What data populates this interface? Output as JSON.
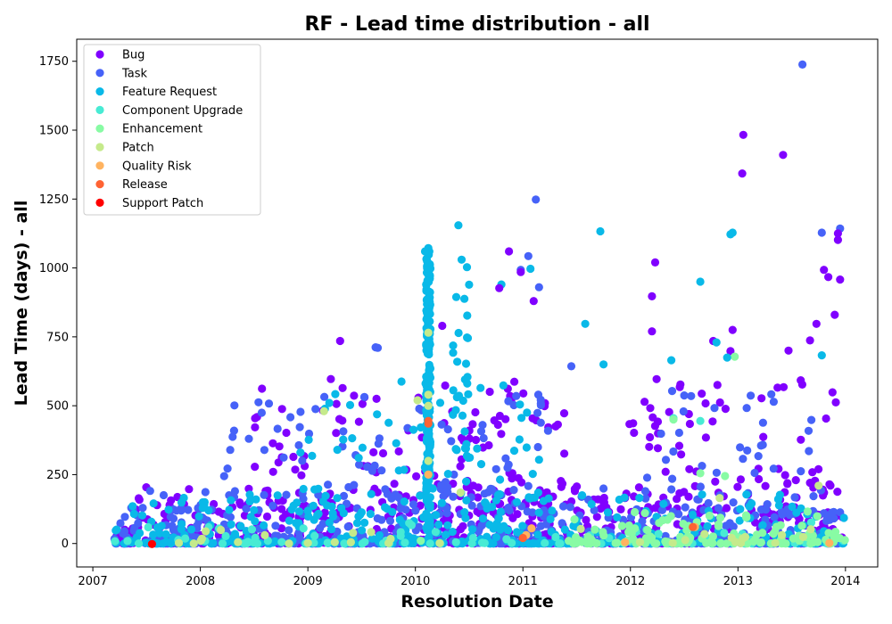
{
  "chart_data": {
    "type": "scatter",
    "title": "RF - Lead time distribution - all",
    "xlabel": "Resolution Date",
    "ylabel": "Lead Time (days) - all",
    "xlim": [
      2006.85,
      2014.3
    ],
    "ylim": [
      -85,
      1830
    ],
    "xticks": [
      2007,
      2008,
      2009,
      2010,
      2011,
      2012,
      2013,
      2014
    ],
    "yticks": [
      0,
      250,
      500,
      750,
      1000,
      1250,
      1500,
      1750
    ],
    "legend_position": "upper-left",
    "grid": false,
    "series": [
      {
        "name": "Bug",
        "color": "#8000ff"
      },
      {
        "name": "Task",
        "color": "#4662f8"
      },
      {
        "name": "Feature Request",
        "color": "#09b9e8"
      },
      {
        "name": "Component  Upgrade",
        "color": "#48ebd4"
      },
      {
        "name": "Enhancement",
        "color": "#88fba4"
      },
      {
        "name": "Patch",
        "color": "#c5ea8b"
      },
      {
        "name": "Quality Risk",
        "color": "#ffb360"
      },
      {
        "name": "Release",
        "color": "#ff6333"
      },
      {
        "name": "Support Patch",
        "color": "#ff0000"
      }
    ],
    "outliers": [
      {
        "series": "Task",
        "x": 2013.6,
        "y": 1738
      },
      {
        "series": "Bug",
        "x": 2013.05,
        "y": 1483
      },
      {
        "series": "Bug",
        "x": 2013.42,
        "y": 1410
      },
      {
        "series": "Bug",
        "x": 2013.04,
        "y": 1343
      },
      {
        "series": "Task",
        "x": 2011.12,
        "y": 1248
      },
      {
        "series": "Feature Request",
        "x": 2010.4,
        "y": 1155
      },
      {
        "series": "Task",
        "x": 2013.95,
        "y": 1143
      },
      {
        "series": "Feature Request",
        "x": 2011.72,
        "y": 1133
      },
      {
        "series": "Task",
        "x": 2013.78,
        "y": 1128
      },
      {
        "series": "Feature Request",
        "x": 2012.95,
        "y": 1128
      },
      {
        "series": "Bug",
        "x": 2013.93,
        "y": 1125
      },
      {
        "series": "Feature Request",
        "x": 2012.93,
        "y": 1122
      },
      {
        "series": "Bug",
        "x": 2013.93,
        "y": 1102
      },
      {
        "series": "Feature Request",
        "x": 2010.12,
        "y": 1072
      },
      {
        "series": "Feature Request",
        "x": 2010.09,
        "y": 1060
      },
      {
        "series": "Bug",
        "x": 2010.87,
        "y": 1060
      },
      {
        "series": "Task",
        "x": 2011.05,
        "y": 1043
      },
      {
        "series": "Feature Request",
        "x": 2010.43,
        "y": 1030
      },
      {
        "series": "Bug",
        "x": 2012.23,
        "y": 1020
      },
      {
        "series": "Feature Request",
        "x": 2010.48,
        "y": 1003
      },
      {
        "series": "Feature Request",
        "x": 2011.07,
        "y": 997
      },
      {
        "series": "Task",
        "x": 2010.98,
        "y": 993
      },
      {
        "series": "Bug",
        "x": 2013.8,
        "y": 993
      },
      {
        "series": "Bug",
        "x": 2010.98,
        "y": 985
      },
      {
        "series": "Bug",
        "x": 2013.84,
        "y": 967
      },
      {
        "series": "Bug",
        "x": 2013.95,
        "y": 958
      },
      {
        "series": "Feature Request",
        "x": 2012.65,
        "y": 950
      },
      {
        "series": "Feature Request",
        "x": 2010.8,
        "y": 940
      },
      {
        "series": "Task",
        "x": 2011.15,
        "y": 930
      },
      {
        "series": "Bug",
        "x": 2010.78,
        "y": 927
      },
      {
        "series": "Bug",
        "x": 2012.2,
        "y": 897
      },
      {
        "series": "Bug",
        "x": 2011.1,
        "y": 880
      },
      {
        "series": "Bug",
        "x": 2013.9,
        "y": 830
      },
      {
        "series": "Feature Request",
        "x": 2011.58,
        "y": 797
      },
      {
        "series": "Bug",
        "x": 2013.73,
        "y": 797
      },
      {
        "series": "Bug",
        "x": 2010.25,
        "y": 790
      },
      {
        "series": "Bug",
        "x": 2012.95,
        "y": 775
      },
      {
        "series": "Bug",
        "x": 2012.2,
        "y": 770
      },
      {
        "series": "Bug",
        "x": 2013.67,
        "y": 737
      },
      {
        "series": "Bug",
        "x": 2009.3,
        "y": 735
      },
      {
        "series": "Bug",
        "x": 2012.77,
        "y": 735
      },
      {
        "series": "Feature Request",
        "x": 2012.8,
        "y": 730
      },
      {
        "series": "Task",
        "x": 2009.63,
        "y": 712
      },
      {
        "series": "Task",
        "x": 2009.65,
        "y": 710
      },
      {
        "series": "Bug",
        "x": 2013.47,
        "y": 700
      },
      {
        "series": "Bug",
        "x": 2012.93,
        "y": 698
      },
      {
        "series": "Feature Request",
        "x": 2013.78,
        "y": 683
      },
      {
        "series": "Enhancement",
        "x": 2012.97,
        "y": 678
      },
      {
        "series": "Feature Request",
        "x": 2012.9,
        "y": 675
      },
      {
        "series": "Feature Request",
        "x": 2012.38,
        "y": 665
      },
      {
        "series": "Feature Request",
        "x": 2011.75,
        "y": 650
      },
      {
        "series": "Task",
        "x": 2011.45,
        "y": 643
      }
    ],
    "clusters": [
      {
        "series": "Bug",
        "x_range": [
          2007.2,
          2014.0
        ],
        "y_range": [
          0,
          210
        ],
        "count": 600,
        "density": "heavy-0-to-100"
      },
      {
        "series": "Bug",
        "x_range": [
          2008.4,
          2011.4
        ],
        "y_range": [
          100,
          600
        ],
        "count": 140,
        "density": "moderate"
      },
      {
        "series": "Bug",
        "x_range": [
          2011.9,
          2013.95
        ],
        "y_range": [
          100,
          600
        ],
        "count": 90,
        "density": "moderate"
      },
      {
        "series": "Task",
        "x_range": [
          2007.2,
          2014.0
        ],
        "y_range": [
          0,
          200
        ],
        "count": 450,
        "density": "heavy-0-to-100"
      },
      {
        "series": "Task",
        "x_range": [
          2008.2,
          2011.3
        ],
        "y_range": [
          100,
          560
        ],
        "count": 90,
        "density": "moderate"
      },
      {
        "series": "Task",
        "x_range": [
          2012.0,
          2013.95
        ],
        "y_range": [
          80,
          560
        ],
        "count": 40,
        "density": "sparse"
      },
      {
        "series": "Feature Request",
        "x_range": [
          2007.2,
          2014.0
        ],
        "y_range": [
          0,
          180
        ],
        "count": 380,
        "density": "heavy-0-to-80"
      },
      {
        "series": "Feature Request",
        "x_range": [
          2008.9,
          2011.2
        ],
        "y_range": [
          100,
          600
        ],
        "count": 60,
        "density": "moderate"
      },
      {
        "series": "Feature Request",
        "x_range": [
          2010.1,
          2010.14
        ],
        "y_range": [
          0,
          1060
        ],
        "count": 230,
        "density": "vertical-band"
      },
      {
        "series": "Feature Request",
        "x_range": [
          2010.35,
          2010.5
        ],
        "y_range": [
          300,
          1000
        ],
        "count": 30,
        "density": "moderate"
      },
      {
        "series": "Component  Upgrade",
        "x_range": [
          2007.2,
          2014.0
        ],
        "y_range": [
          0,
          80
        ],
        "count": 80,
        "density": "heavy-near-0"
      },
      {
        "series": "Enhancement",
        "x_range": [
          2011.4,
          2014.0
        ],
        "y_range": [
          0,
          120
        ],
        "count": 120,
        "density": "heavy-near-0"
      },
      {
        "series": "Patch",
        "x_range": [
          2007.8,
          2013.9
        ],
        "y_range": [
          0,
          60
        ],
        "count": 25,
        "density": "sparse"
      }
    ],
    "points": [
      {
        "series": "Patch",
        "x": 2010.12,
        "y": 540
      },
      {
        "series": "Patch",
        "x": 2010.12,
        "y": 500
      },
      {
        "series": "Patch",
        "x": 2010.12,
        "y": 300
      },
      {
        "series": "Patch",
        "x": 2010.12,
        "y": 765
      },
      {
        "series": "Patch",
        "x": 2010.02,
        "y": 520
      },
      {
        "series": "Patch",
        "x": 2012.83,
        "y": 165
      },
      {
        "series": "Patch",
        "x": 2013.75,
        "y": 210
      },
      {
        "series": "Patch",
        "x": 2009.15,
        "y": 480
      },
      {
        "series": "Patch",
        "x": 2008.6,
        "y": 30
      },
      {
        "series": "Patch",
        "x": 2009.25,
        "y": 5
      },
      {
        "series": "Patch",
        "x": 2009.4,
        "y": 5
      },
      {
        "series": "Patch",
        "x": 2009.0,
        "y": 2
      },
      {
        "series": "Patch",
        "x": 2008.35,
        "y": 5
      },
      {
        "series": "Patch",
        "x": 2007.8,
        "y": 2
      },
      {
        "series": "Patch",
        "x": 2010.42,
        "y": 185
      },
      {
        "series": "Component  Upgrade",
        "x": 2012.65,
        "y": 445
      },
      {
        "series": "Component  Upgrade",
        "x": 2012.4,
        "y": 455
      },
      {
        "series": "Enhancement",
        "x": 2012.4,
        "y": 450
      },
      {
        "series": "Enhancement",
        "x": 2012.88,
        "y": 245
      },
      {
        "series": "Enhancement",
        "x": 2012.65,
        "y": 255
      },
      {
        "series": "Enhancement",
        "x": 2010.05,
        "y": 10
      },
      {
        "series": "Quality Risk",
        "x": 2010.12,
        "y": 250
      },
      {
        "series": "Quality Risk",
        "x": 2011.08,
        "y": 55
      },
      {
        "series": "Quality Risk",
        "x": 2011.03,
        "y": 30
      },
      {
        "series": "Quality Risk",
        "x": 2011.95,
        "y": 5
      },
      {
        "series": "Quality Risk",
        "x": 2012.6,
        "y": 60
      },
      {
        "series": "Quality Risk",
        "x": 2013.85,
        "y": 2
      },
      {
        "series": "Release",
        "x": 2010.12,
        "y": 445
      },
      {
        "series": "Release",
        "x": 2010.12,
        "y": 435
      },
      {
        "series": "Release",
        "x": 2011.0,
        "y": 20
      },
      {
        "series": "Release",
        "x": 2012.58,
        "y": 60
      },
      {
        "series": "Support Patch",
        "x": 2007.55,
        "y": -2
      }
    ]
  }
}
